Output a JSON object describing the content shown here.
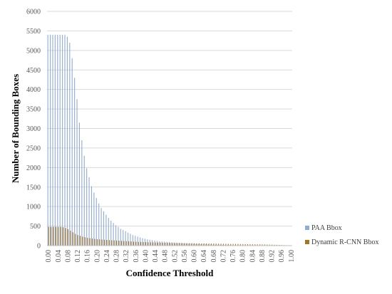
{
  "chart_data": {
    "type": "bar",
    "title": "",
    "xlabel": "Confidence Threshold",
    "ylabel": "Number of Bounding Boxes",
    "ylim": [
      0,
      6000
    ],
    "yticks": [
      0,
      500,
      1000,
      1500,
      2000,
      2500,
      3000,
      3500,
      4000,
      4500,
      5000,
      5500,
      6000
    ],
    "xtick_labels": [
      "0.00",
      "0.04",
      "0.08",
      "0.12",
      "0.16",
      "0.20",
      "0.24",
      "0.28",
      "0.32",
      "0.36",
      "0.40",
      "0.44",
      "0.48",
      "0.52",
      "0.56",
      "0.60",
      "0.64",
      "0.68",
      "0.72",
      "0.76",
      "0.80",
      "0.84",
      "0.88",
      "0.92",
      "0.96",
      "1.00"
    ],
    "categories": [
      "0.00",
      "0.01",
      "0.02",
      "0.03",
      "0.04",
      "0.05",
      "0.06",
      "0.07",
      "0.08",
      "0.09",
      "0.10",
      "0.11",
      "0.12",
      "0.13",
      "0.14",
      "0.15",
      "0.16",
      "0.17",
      "0.18",
      "0.19",
      "0.20",
      "0.21",
      "0.22",
      "0.23",
      "0.24",
      "0.25",
      "0.26",
      "0.27",
      "0.28",
      "0.29",
      "0.30",
      "0.31",
      "0.32",
      "0.33",
      "0.34",
      "0.35",
      "0.36",
      "0.37",
      "0.38",
      "0.39",
      "0.40",
      "0.41",
      "0.42",
      "0.43",
      "0.44",
      "0.45",
      "0.46",
      "0.47",
      "0.48",
      "0.49",
      "0.50",
      "0.51",
      "0.52",
      "0.53",
      "0.54",
      "0.55",
      "0.56",
      "0.57",
      "0.58",
      "0.59",
      "0.60",
      "0.61",
      "0.62",
      "0.63",
      "0.64",
      "0.65",
      "0.66",
      "0.67",
      "0.68",
      "0.69",
      "0.70",
      "0.71",
      "0.72",
      "0.73",
      "0.74",
      "0.75",
      "0.76",
      "0.77",
      "0.78",
      "0.79",
      "0.80",
      "0.81",
      "0.82",
      "0.83",
      "0.84",
      "0.85",
      "0.86",
      "0.87",
      "0.88",
      "0.89",
      "0.90",
      "0.91",
      "0.92",
      "0.93",
      "0.94",
      "0.95",
      "0.96",
      "0.97",
      "0.98",
      "0.99",
      "1.00"
    ],
    "series": [
      {
        "name": "PAA Bbox",
        "color": "#8faadc",
        "values": [
          5400,
          5400,
          5400,
          5400,
          5400,
          5400,
          5400,
          5400,
          5350,
          5200,
          4800,
          4300,
          3750,
          3150,
          2700,
          2300,
          1980,
          1750,
          1520,
          1360,
          1220,
          1080,
          960,
          880,
          790,
          710,
          640,
          580,
          520,
          480,
          430,
          400,
          370,
          330,
          300,
          270,
          250,
          230,
          210,
          190,
          175,
          160,
          150,
          140,
          130,
          120,
          110,
          105,
          100,
          95,
          90,
          85,
          80,
          75,
          70,
          65,
          60,
          55,
          50,
          48,
          45,
          42,
          40,
          38,
          35,
          33,
          30,
          28,
          26,
          24,
          22,
          20,
          18,
          17,
          16,
          15,
          14,
          13,
          12,
          11,
          10,
          9,
          8,
          8,
          7,
          7,
          6,
          6,
          5,
          5,
          4,
          4,
          3,
          3,
          3,
          2,
          2,
          2,
          1,
          1,
          1
        ]
      },
      {
        "name": "Dynamic R-CNN Bbox",
        "color": "#a9761e",
        "values": [
          480,
          480,
          480,
          480,
          480,
          480,
          470,
          450,
          420,
          380,
          340,
          300,
          270,
          250,
          230,
          215,
          200,
          190,
          180,
          172,
          165,
          160,
          155,
          150,
          146,
          142,
          138,
          134,
          130,
          126,
          122,
          118,
          114,
          110,
          106,
          102,
          99,
          96,
          93,
          90,
          88,
          86,
          84,
          82,
          80,
          78,
          76,
          74,
          72,
          70,
          68,
          67,
          66,
          65,
          64,
          63,
          62,
          61,
          60,
          60,
          59,
          58,
          57,
          56,
          55,
          54,
          53,
          52,
          51,
          50,
          49,
          48,
          47,
          46,
          45,
          44,
          43,
          42,
          41,
          40,
          39,
          38,
          37,
          36,
          35,
          34,
          33,
          32,
          31,
          30,
          28,
          26,
          24,
          22,
          20,
          18,
          15,
          12,
          9,
          6,
          3
        ]
      }
    ],
    "legend_position": "right",
    "grid": true
  }
}
